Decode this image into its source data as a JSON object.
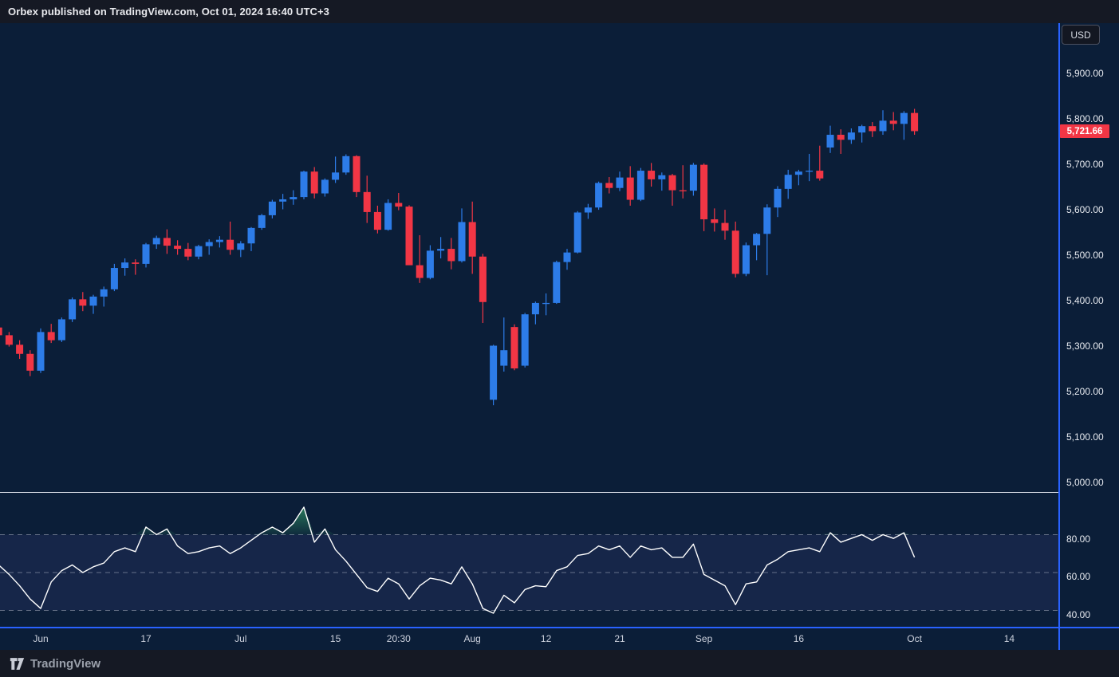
{
  "header": {
    "published_line": "Orbex published on TradingView.com, Oct 01, 2024 16:40 UTC+3"
  },
  "footer": {
    "brand": "TradingView"
  },
  "price_scale": {
    "currency_button": "USD",
    "last_price_label": "5,721.66"
  },
  "colors": {
    "up": "#2d7ce8",
    "down": "#f23645",
    "chart_bg": "#0b1e38",
    "frame_bg": "#151924",
    "accent_line": "#2962ff",
    "pane_separator": "#dfe2ea",
    "rsi_line": "#ffffff",
    "rsi_band_fill": "rgba(126,116,226,0.10)",
    "rsi_level_dash": "rgba(172,177,192,0.55)",
    "rsi_overbought_fill": "#2f8f63",
    "price_label_bg": "#f23645"
  },
  "chart_data": {
    "type": "candlestick",
    "instrument_currency": "USD",
    "last_price": 5721.66,
    "price_axis": {
      "min": 5000,
      "max": 5900,
      "step": 100,
      "tick_values": [
        5900,
        5800,
        5700,
        5600,
        5500,
        5400,
        5300,
        5200,
        5100,
        5000
      ],
      "tick_labels": [
        "5,900.00",
        "5,800.00",
        "5,700.00",
        "5,600.00",
        "5,500.00",
        "5,400.00",
        "5,300.00",
        "5,200.00",
        "5,100.00",
        "5,000.00"
      ]
    },
    "time_axis": {
      "ticks": [
        {
          "label": "Jun",
          "bar": 4
        },
        {
          "label": "17",
          "bar": 14
        },
        {
          "label": "Jul",
          "bar": 23
        },
        {
          "label": "15",
          "bar": 32
        },
        {
          "label": "20:30",
          "bar": 38
        },
        {
          "label": "Aug",
          "bar": 45
        },
        {
          "label": "12",
          "bar": 52
        },
        {
          "label": "21",
          "bar": 59
        },
        {
          "label": "Sep",
          "bar": 67
        },
        {
          "label": "16",
          "bar": 76
        },
        {
          "label": "Oct",
          "bar": 87
        },
        {
          "label": "14",
          "bar": 96
        }
      ]
    },
    "candles": [
      [
        5290,
        5305,
        5268,
        5273
      ],
      [
        5273,
        5280,
        5248,
        5252
      ],
      [
        5252,
        5262,
        5221,
        5232
      ],
      [
        5232,
        5240,
        5183,
        5195
      ],
      [
        5195,
        5288,
        5190,
        5280
      ],
      [
        5280,
        5298,
        5256,
        5262
      ],
      [
        5262,
        5312,
        5258,
        5308
      ],
      [
        5308,
        5356,
        5302,
        5352
      ],
      [
        5352,
        5368,
        5326,
        5338
      ],
      [
        5338,
        5362,
        5320,
        5358
      ],
      [
        5358,
        5380,
        5336,
        5374
      ],
      [
        5374,
        5430,
        5370,
        5421
      ],
      [
        5421,
        5442,
        5404,
        5433
      ],
      [
        5433,
        5440,
        5406,
        5430
      ],
      [
        5430,
        5476,
        5422,
        5473
      ],
      [
        5473,
        5492,
        5463,
        5487
      ],
      [
        5487,
        5506,
        5452,
        5470
      ],
      [
        5470,
        5482,
        5450,
        5463
      ],
      [
        5463,
        5476,
        5438,
        5446
      ],
      [
        5446,
        5472,
        5440,
        5469
      ],
      [
        5469,
        5484,
        5450,
        5478
      ],
      [
        5478,
        5491,
        5466,
        5483
      ],
      [
        5483,
        5523,
        5450,
        5461
      ],
      [
        5461,
        5480,
        5445,
        5475
      ],
      [
        5475,
        5511,
        5458,
        5509
      ],
      [
        5509,
        5540,
        5505,
        5537
      ],
      [
        5537,
        5571,
        5530,
        5567
      ],
      [
        5567,
        5584,
        5550,
        5572
      ],
      [
        5572,
        5592,
        5560,
        5577
      ],
      [
        5577,
        5635,
        5572,
        5633
      ],
      [
        5633,
        5643,
        5574,
        5585
      ],
      [
        5585,
        5618,
        5578,
        5615
      ],
      [
        5615,
        5666,
        5608,
        5631
      ],
      [
        5631,
        5671,
        5626,
        5667
      ],
      [
        5667,
        5669,
        5577,
        5588
      ],
      [
        5588,
        5624,
        5520,
        5544
      ],
      [
        5544,
        5558,
        5497,
        5505
      ],
      [
        5505,
        5572,
        5503,
        5564
      ],
      [
        5564,
        5586,
        5548,
        5556
      ],
      [
        5556,
        5559,
        5428,
        5427
      ],
      [
        5427,
        5493,
        5388,
        5399
      ],
      [
        5399,
        5471,
        5396,
        5459
      ],
      [
        5459,
        5489,
        5442,
        5463
      ],
      [
        5463,
        5487,
        5418,
        5436
      ],
      [
        5436,
        5552,
        5433,
        5522
      ],
      [
        5522,
        5567,
        5408,
        5446
      ],
      [
        5446,
        5452,
        5300,
        5346
      ],
      [
        5131,
        5252,
        5119,
        5250
      ],
      [
        5206,
        5312,
        5193,
        5240
      ],
      [
        5291,
        5297,
        5196,
        5200
      ],
      [
        5206,
        5322,
        5202,
        5319
      ],
      [
        5319,
        5347,
        5297,
        5344
      ],
      [
        5344,
        5365,
        5317,
        5344
      ],
      [
        5344,
        5437,
        5342,
        5434
      ],
      [
        5434,
        5463,
        5417,
        5455
      ],
      [
        5455,
        5546,
        5453,
        5543
      ],
      [
        5543,
        5562,
        5529,
        5554
      ],
      [
        5554,
        5611,
        5549,
        5608
      ],
      [
        5608,
        5621,
        5585,
        5597
      ],
      [
        5597,
        5633,
        5590,
        5620
      ],
      [
        5620,
        5645,
        5558,
        5571
      ],
      [
        5571,
        5641,
        5568,
        5635
      ],
      [
        5635,
        5652,
        5600,
        5616
      ],
      [
        5616,
        5631,
        5591,
        5625
      ],
      [
        5625,
        5628,
        5558,
        5592
      ],
      [
        5592,
        5647,
        5574,
        5591
      ],
      [
        5591,
        5652,
        5580,
        5648
      ],
      [
        5648,
        5651,
        5502,
        5528
      ],
      [
        5528,
        5552,
        5501,
        5520
      ],
      [
        5520,
        5549,
        5483,
        5503
      ],
      [
        5503,
        5523,
        5400,
        5408
      ],
      [
        5408,
        5477,
        5403,
        5471
      ],
      [
        5471,
        5498,
        5438,
        5496
      ],
      [
        5496,
        5561,
        5405,
        5554
      ],
      [
        5554,
        5601,
        5533,
        5595
      ],
      [
        5595,
        5637,
        5573,
        5626
      ],
      [
        5626,
        5637,
        5603,
        5633
      ],
      [
        5633,
        5672,
        5612,
        5635
      ],
      [
        5635,
        5690,
        5613,
        5618
      ],
      [
        5686,
        5734,
        5674,
        5714
      ],
      [
        5714,
        5726,
        5672,
        5703
      ],
      [
        5703,
        5728,
        5694,
        5719
      ],
      [
        5719,
        5736,
        5697,
        5733
      ],
      [
        5733,
        5742,
        5709,
        5722
      ],
      [
        5722,
        5768,
        5714,
        5745
      ],
      [
        5745,
        5764,
        5724,
        5738
      ],
      [
        5738,
        5766,
        5703,
        5762
      ],
      [
        5762,
        5771,
        5714,
        5722
      ]
    ],
    "rsi_panel": {
      "type": "line",
      "name": "RSI",
      "tick_values": [
        80,
        60,
        40
      ],
      "tick_labels": [
        "80.00",
        "60.00",
        "40.00"
      ],
      "levels": [
        70,
        50,
        30
      ],
      "band": [
        30,
        70
      ],
      "overbought_above": 70,
      "values": [
        54,
        49,
        43,
        36,
        31,
        45,
        51,
        54,
        50,
        53,
        55,
        61,
        63,
        61,
        74,
        70,
        73,
        64,
        60,
        61,
        63,
        64,
        60,
        63,
        67,
        71,
        74,
        71,
        76,
        84.5,
        66,
        73,
        62,
        56,
        49,
        42,
        40,
        47,
        44,
        36,
        43,
        47,
        46,
        44,
        53,
        44,
        31,
        28.5,
        38,
        34,
        41,
        43,
        42.5,
        51,
        53,
        59,
        60,
        64,
        62,
        64,
        58,
        64,
        62,
        63,
        58,
        58,
        65,
        49,
        46,
        43,
        33,
        44,
        45,
        54,
        57,
        61,
        62,
        63,
        61,
        71,
        66,
        68,
        70,
        67,
        70,
        68,
        71,
        58
      ]
    }
  }
}
